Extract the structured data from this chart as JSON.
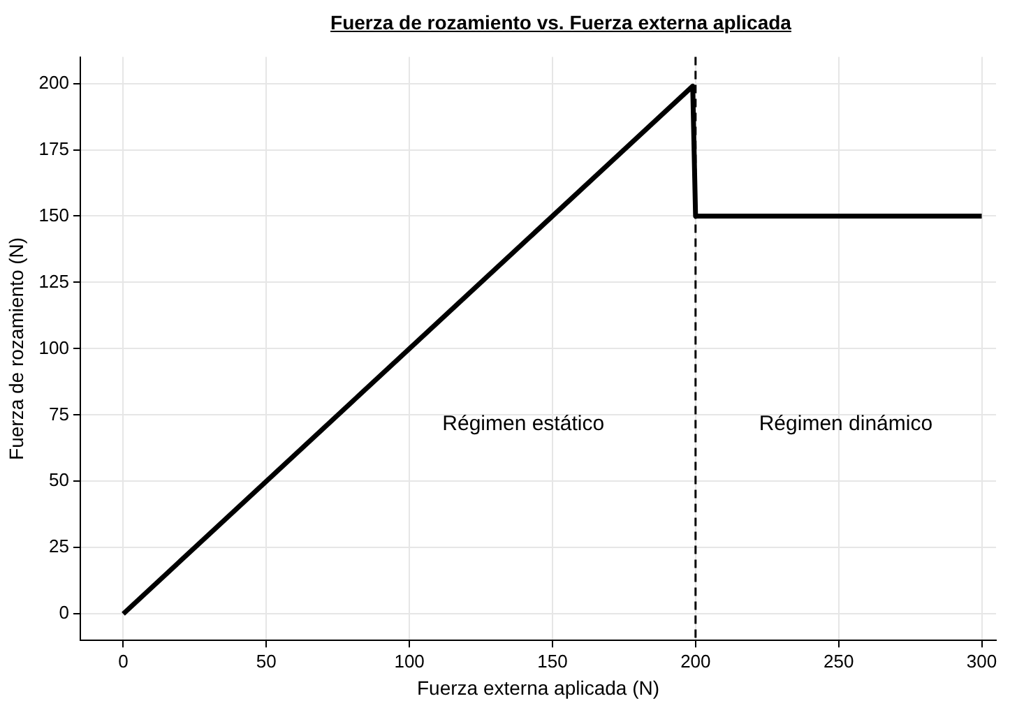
{
  "chart_data": {
    "type": "line",
    "title": "Fuerza de rozamiento vs. Fuerza externa aplicada",
    "xlabel": "Fuerza externa aplicada (N)",
    "ylabel": "Fuerza de rozamiento (N)",
    "series": [
      {
        "color": "#000000",
        "x": [
          0,
          199,
          200,
          300
        ],
        "values": [
          0,
          199,
          150,
          150
        ]
      }
    ],
    "xlim": [
      -15,
      305
    ],
    "xticks": [
      0,
      50,
      100,
      150,
      200,
      250,
      300
    ],
    "ylim": [
      -10,
      210
    ],
    "yticks": [
      0,
      25,
      50,
      75,
      100,
      125,
      150,
      175,
      200
    ],
    "grid": true,
    "legend": false,
    "marker": "none",
    "line_style": "solid",
    "ref_lines": [
      {
        "axis": "x",
        "value": 200,
        "color": "#000000",
        "line_style": "dashed"
      }
    ],
    "annotations": [
      "Régimen estático",
      "Régimen dinámico"
    ]
  }
}
